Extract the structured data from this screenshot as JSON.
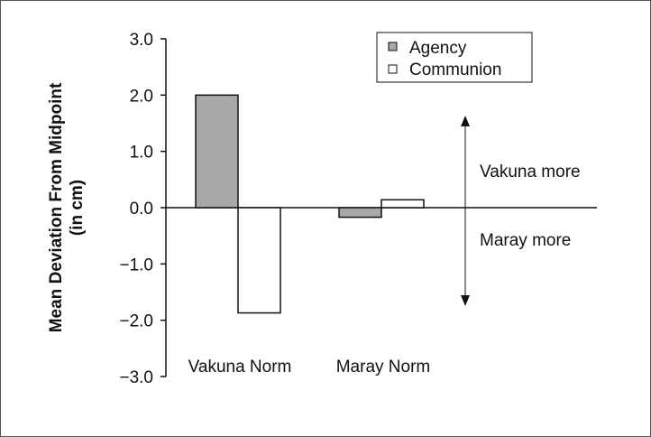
{
  "chart_data": {
    "type": "bar",
    "ylabel_line1": "Mean Deviation From Midpoint",
    "ylabel_line2": "(in cm)",
    "ylim": [
      -3.0,
      3.0
    ],
    "yticks": [
      3.0,
      2.0,
      1.0,
      0.0,
      -1.0,
      -2.0,
      -3.0
    ],
    "ytick_labels": [
      "3.0",
      "2.0",
      "1.0",
      "0.0",
      "−1.0",
      "−2.0",
      "−3.0"
    ],
    "categories": [
      "Vakuna Norm",
      "Maray Norm"
    ],
    "series": [
      {
        "name": "Agency",
        "values": [
          2.0,
          -0.17
        ],
        "color": "#a8a8a8"
      },
      {
        "name": "Communion",
        "values": [
          -1.87,
          0.14
        ],
        "color": "#ffffff"
      }
    ],
    "legend_position": "top-right",
    "annotations": {
      "up_label": "Vakuna more",
      "down_label": "Maray more"
    },
    "grid": false
  }
}
